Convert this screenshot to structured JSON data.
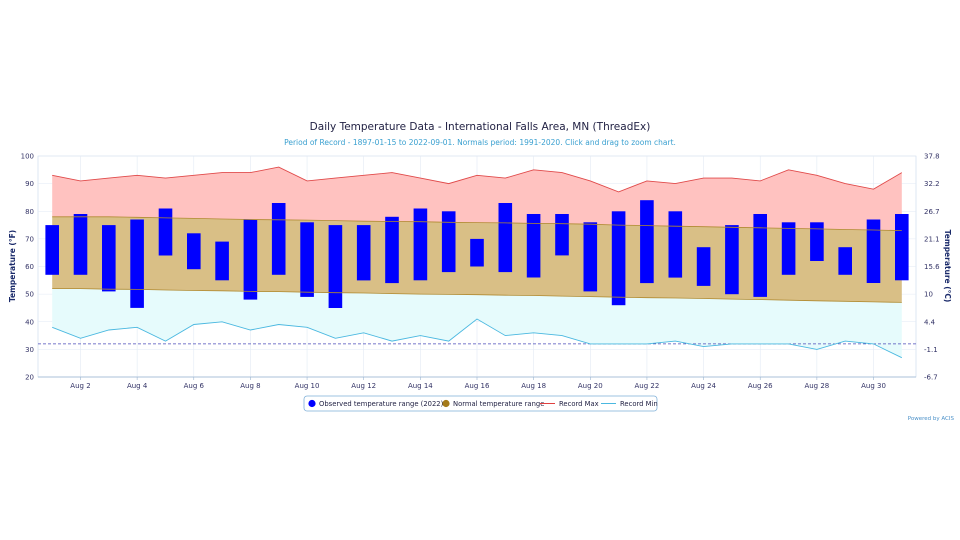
{
  "chart_data": {
    "type": "bar",
    "title": "Daily Temperature Data - International Falls Area, MN (ThreadEx)",
    "subtitle": "Period of Record - 1897-01-15 to 2022-09-01. Normals period: 1991-2020. Click and drag to zoom chart.",
    "ylabel": "Temperature (°F)",
    "ylabel_right": "Temperature (°C)",
    "ylim": [
      20,
      100
    ],
    "y_ticks": [
      20,
      30,
      40,
      50,
      60,
      70,
      80,
      90,
      100
    ],
    "y_ticks_right": [
      "-6.7",
      "-1.1",
      "4.4",
      "10",
      "15.6",
      "21.1",
      "26.7",
      "32.2",
      "37.8"
    ],
    "x_tick_labels": [
      "Aug 2",
      "Aug 4",
      "Aug 6",
      "Aug 8",
      "Aug 10",
      "Aug 12",
      "Aug 14",
      "Aug 16",
      "Aug 18",
      "Aug 20",
      "Aug 22",
      "Aug 24",
      "Aug 26",
      "Aug 28",
      "Aug 30"
    ],
    "x_tick_days": [
      2,
      4,
      6,
      8,
      10,
      12,
      14,
      16,
      18,
      20,
      22,
      24,
      26,
      28,
      30
    ],
    "days": [
      1,
      2,
      3,
      4,
      5,
      6,
      7,
      8,
      9,
      10,
      11,
      12,
      13,
      14,
      15,
      16,
      17,
      18,
      19,
      20,
      21,
      22,
      23,
      24,
      25,
      26,
      27,
      28,
      29,
      30,
      31
    ],
    "observed_min": [
      57,
      57,
      51,
      45,
      64,
      59,
      55,
      48,
      57,
      49,
      45,
      55,
      54,
      55,
      58,
      60,
      58,
      56,
      64,
      51,
      46,
      54,
      56,
      53,
      50,
      49,
      57,
      62,
      57,
      54,
      55
    ],
    "observed_max": [
      75,
      79,
      75,
      77,
      81,
      72,
      69,
      77,
      83,
      76,
      75,
      75,
      78,
      81,
      80,
      70,
      83,
      79,
      79,
      76,
      80,
      84,
      80,
      67,
      75,
      79,
      76,
      76,
      67,
      77,
      79
    ],
    "normal_max": [
      78,
      78,
      78,
      77.8,
      77.6,
      77.4,
      77.2,
      77,
      76.9,
      76.8,
      76.6,
      76.4,
      76.3,
      76.2,
      76,
      75.9,
      75.8,
      75.6,
      75.5,
      75.3,
      75,
      74.8,
      74.6,
      74.4,
      74.2,
      74,
      73.8,
      73.6,
      73.4,
      73.2,
      73
    ],
    "normal_min": [
      52,
      52,
      51.8,
      51.7,
      51.5,
      51.3,
      51.2,
      51,
      50.9,
      50.7,
      50.5,
      50.4,
      50.2,
      50,
      49.9,
      49.8,
      49.6,
      49.5,
      49.3,
      49.1,
      48.9,
      48.7,
      48.6,
      48.4,
      48.2,
      48,
      47.8,
      47.6,
      47.4,
      47.2,
      47
    ],
    "record_max": [
      93,
      91,
      92,
      93,
      92,
      93,
      94,
      94,
      96,
      91,
      92,
      93,
      94,
      92,
      90,
      93,
      92,
      95,
      94,
      91,
      87,
      91,
      90,
      92,
      92,
      91,
      95,
      93,
      90,
      88,
      94
    ],
    "record_min": [
      38,
      34,
      37,
      38,
      33,
      39,
      40,
      37,
      39,
      38,
      34,
      36,
      33,
      35,
      33,
      41,
      35,
      36,
      35,
      32,
      32,
      32,
      33,
      31,
      32,
      32,
      32,
      30,
      33,
      32,
      27
    ],
    "freezing_line": 32,
    "series": [
      {
        "name": "Observed temperature range (2022)",
        "color": "#0000ff"
      },
      {
        "name": "Normal temperature range",
        "color": "#a47a1a"
      },
      {
        "name": "Record Max",
        "color": "#e04040"
      },
      {
        "name": "Record Min",
        "color": "#4ab8e0"
      }
    ],
    "legend_position": "bottom-center",
    "grid": true,
    "credits": "Powered by ACIS"
  }
}
